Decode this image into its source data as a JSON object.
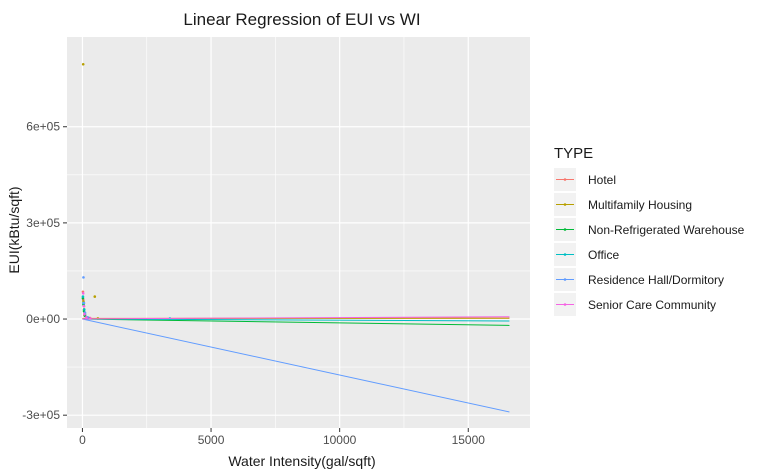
{
  "chart_data": {
    "type": "line",
    "title": "Linear Regression of EUI vs WI",
    "xlabel": "Water Intensity(gal/sqft)",
    "ylabel": "EUI(kBtu/sqft)",
    "xlim": [
      -600,
      17400
    ],
    "ylim": [
      -340000,
      880000
    ],
    "x_ticks": [
      0,
      5000,
      10000,
      15000
    ],
    "x_tick_labels": [
      "0",
      "5000",
      "10000",
      "15000"
    ],
    "y_ticks": [
      -300000,
      0,
      300000,
      600000
    ],
    "y_tick_labels": [
      "-3e+05",
      "0e+00",
      "3e+05",
      "6e+05"
    ],
    "grid": true,
    "legend": {
      "title": "TYPE",
      "position": "right"
    },
    "series": [
      {
        "name": "Hotel",
        "color": "#F8766D",
        "points": [
          [
            20,
            85000
          ],
          [
            30,
            60000
          ],
          [
            60,
            40000
          ],
          [
            80,
            20000
          ],
          [
            150,
            6000
          ],
          [
            300,
            3000
          ]
        ],
        "line": [
          [
            0,
            2000
          ],
          [
            16600,
            3000
          ]
        ]
      },
      {
        "name": "Multifamily Housing",
        "color": "#B79F00",
        "points": [
          [
            30,
            795000
          ],
          [
            40,
            55000
          ],
          [
            60,
            30000
          ],
          [
            80,
            12000
          ],
          [
            480,
            70000
          ],
          [
            200,
            4000
          ],
          [
            600,
            2000
          ]
        ],
        "line": [
          [
            0,
            1500
          ],
          [
            16600,
            2500
          ]
        ]
      },
      {
        "name": "Non-Refrigerated Warehouse",
        "color": "#00BA38",
        "points": [
          [
            20,
            65000
          ],
          [
            40,
            45000
          ],
          [
            60,
            25000
          ],
          [
            100,
            10000
          ],
          [
            250,
            3000
          ]
        ],
        "line": [
          [
            0,
            0
          ],
          [
            16600,
            -20000
          ]
        ]
      },
      {
        "name": "Office",
        "color": "#00BFC4",
        "points": [
          [
            20,
            70000
          ],
          [
            40,
            50000
          ],
          [
            70,
            30000
          ],
          [
            100,
            15000
          ],
          [
            200,
            5000
          ],
          [
            3400,
            1500
          ]
        ],
        "line": [
          [
            0,
            0
          ],
          [
            16600,
            -6000
          ]
        ]
      },
      {
        "name": "Residence Hall/Dormitory",
        "color": "#619CFF",
        "points": [
          [
            40,
            130000
          ],
          [
            60,
            50000
          ],
          [
            100,
            20000
          ],
          [
            200,
            5000
          ]
        ],
        "line": [
          [
            0,
            0
          ],
          [
            16600,
            -290000
          ]
        ]
      },
      {
        "name": "Senior Care Community",
        "color": "#F564E3",
        "points": [
          [
            30,
            80000
          ],
          [
            50,
            40000
          ],
          [
            80,
            15000
          ],
          [
            150,
            5000
          ],
          [
            300,
            2000
          ]
        ],
        "line": [
          [
            0,
            500
          ],
          [
            16600,
            7000
          ]
        ]
      }
    ]
  }
}
